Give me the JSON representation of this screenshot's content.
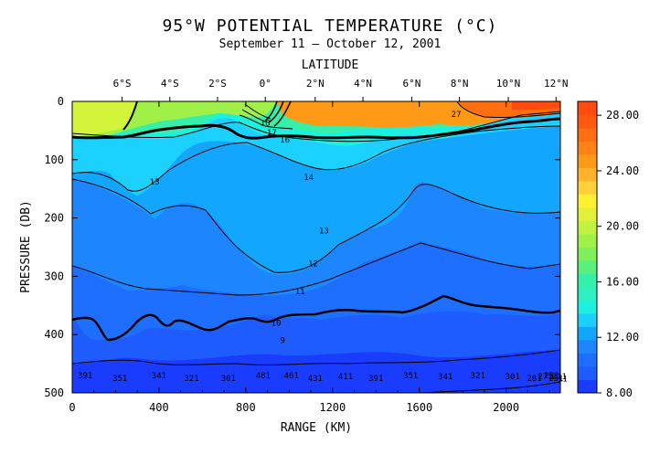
{
  "chart_data": {
    "type": "heatmap",
    "title": "95°W POTENTIAL TEMPERATURE (°C)",
    "subtitle": "September 11 – October 12, 2001",
    "top_axis_label": "LATITUDE",
    "xlabel": "RANGE (KM)",
    "ylabel": "PRESSURE (DB)",
    "xlim": [
      0,
      2250
    ],
    "ylim": [
      500,
      0
    ],
    "x_ticks": [
      0,
      400,
      800,
      1200,
      1600,
      2000
    ],
    "y_ticks": [
      0,
      100,
      200,
      300,
      400,
      500
    ],
    "top_ticks": [
      {
        "label": "6°S",
        "x": 230
      },
      {
        "label": "4°S",
        "x": 450
      },
      {
        "label": "2°S",
        "x": 670
      },
      {
        "label": "0°",
        "x": 890
      },
      {
        "label": "2°N",
        "x": 1120
      },
      {
        "label": "4°N",
        "x": 1340
      },
      {
        "label": "6°N",
        "x": 1565
      },
      {
        "label": "8°N",
        "x": 1785
      },
      {
        "label": "10°N",
        "x": 2010
      },
      {
        "label": "12°N",
        "x": 2230
      }
    ],
    "colorbar": {
      "min": 8,
      "max": 29,
      "labels": [
        "28.00",
        "24.00",
        "20.00",
        "16.00",
        "12.00",
        "8.00"
      ],
      "label_values": [
        28,
        24,
        20,
        16,
        12,
        8
      ]
    },
    "contour_labels": [
      {
        "text": "13",
        "x": 380,
        "y": 138
      },
      {
        "text": "14",
        "x": 1090,
        "y": 130
      },
      {
        "text": "13",
        "x": 1160,
        "y": 222
      },
      {
        "text": "12",
        "x": 1110,
        "y": 278
      },
      {
        "text": "11",
        "x": 1050,
        "y": 326
      },
      {
        "text": "10",
        "x": 940,
        "y": 380
      },
      {
        "text": "9",
        "x": 970,
        "y": 410
      },
      {
        "text": "18",
        "x": 890,
        "y": 37
      },
      {
        "text": "17",
        "x": 920,
        "y": 53
      },
      {
        "text": "16",
        "x": 980,
        "y": 66
      },
      {
        "text": "27",
        "x": 1770,
        "y": 22
      },
      {
        "text": "11",
        "x": 2260,
        "y": 476
      },
      {
        "text": "391",
        "x": 60,
        "y": 470
      },
      {
        "text": "351",
        "x": 220,
        "y": 475
      },
      {
        "text": "341",
        "x": 400,
        "y": 470
      },
      {
        "text": "321",
        "x": 550,
        "y": 475
      },
      {
        "text": "301",
        "x": 720,
        "y": 475
      },
      {
        "text": "481",
        "x": 880,
        "y": 470
      },
      {
        "text": "461",
        "x": 1010,
        "y": 470
      },
      {
        "text": "431",
        "x": 1120,
        "y": 475
      },
      {
        "text": "411",
        "x": 1260,
        "y": 472
      },
      {
        "text": "391",
        "x": 1400,
        "y": 475
      },
      {
        "text": "351",
        "x": 1560,
        "y": 470
      },
      {
        "text": "341",
        "x": 1720,
        "y": 472
      },
      {
        "text": "321",
        "x": 1870,
        "y": 470
      },
      {
        "text": "301",
        "x": 2030,
        "y": 472
      },
      {
        "text": "281",
        "x": 2130,
        "y": 475
      },
      {
        "text": "271",
        "x": 2180,
        "y": 472
      },
      {
        "text": "251",
        "x": 2210,
        "y": 470
      },
      {
        "text": "231",
        "x": 2230,
        "y": 475
      },
      {
        "text": "211",
        "x": 2245,
        "y": 472
      }
    ]
  }
}
